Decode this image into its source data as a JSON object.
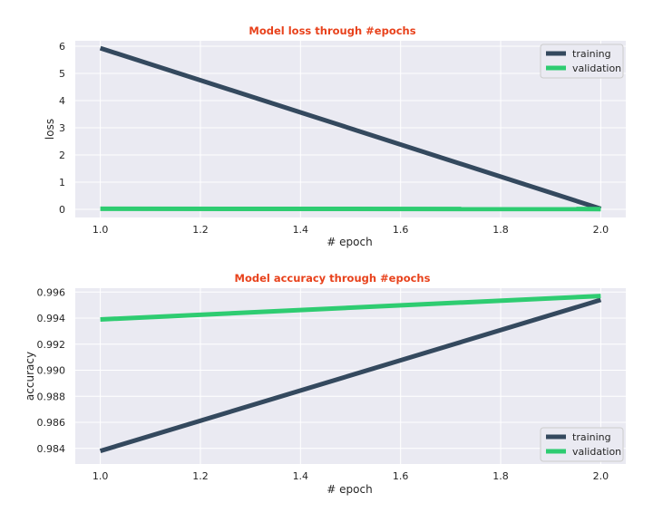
{
  "chart_data": [
    {
      "type": "line",
      "title": "Model loss through #epochs",
      "xlabel": "# epoch",
      "ylabel": "loss",
      "x": [
        1.0,
        2.0
      ],
      "xlim": [
        0.95,
        2.05
      ],
      "ylim": [
        -0.3,
        6.2
      ],
      "xticks": [
        "1.0",
        "1.2",
        "1.4",
        "1.6",
        "1.8",
        "2.0"
      ],
      "yticks": [
        "0",
        "1",
        "2",
        "3",
        "4",
        "5",
        "6"
      ],
      "grid": true,
      "legend_position": "top-right",
      "series": [
        {
          "name": "training",
          "values": [
            5.93,
            0.02
          ],
          "color": "#34495e"
        },
        {
          "name": "validation",
          "values": [
            0.02,
            0.01
          ],
          "color": "#2ecc71"
        }
      ]
    },
    {
      "type": "line",
      "title": "Model accuracy through #epochs",
      "xlabel": "# epoch",
      "ylabel": "accuracy",
      "x": [
        1.0,
        2.0
      ],
      "xlim": [
        0.95,
        2.05
      ],
      "ylim": [
        0.9828,
        0.9963
      ],
      "xticks": [
        "1.0",
        "1.2",
        "1.4",
        "1.6",
        "1.8",
        "2.0"
      ],
      "yticks": [
        "0.984",
        "0.986",
        "0.988",
        "0.990",
        "0.992",
        "0.994",
        "0.996"
      ],
      "grid": true,
      "legend_position": "bottom-right",
      "series": [
        {
          "name": "training",
          "values": [
            0.9838,
            0.9954
          ],
          "color": "#34495e"
        },
        {
          "name": "validation",
          "values": [
            0.9939,
            0.9957
          ],
          "color": "#2ecc71"
        }
      ]
    }
  ]
}
